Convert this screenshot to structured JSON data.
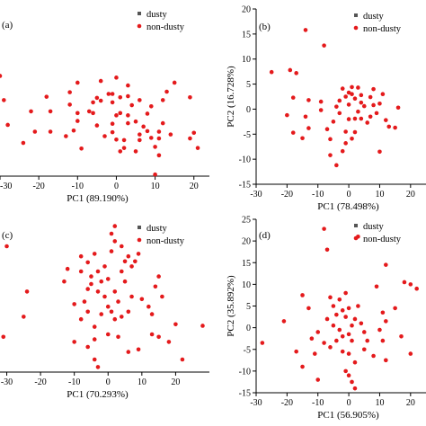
{
  "colors": {
    "nondusty": "#e41a1c",
    "dusty": "#555555"
  },
  "chart_data": [
    {
      "type": "scatter",
      "panel_label": "(a)",
      "xlabel": "PC1 (89.190%)",
      "ylabel": "",
      "xlim": [
        -30,
        24
      ],
      "ylim": [
        -10,
        20
      ],
      "xticks": [
        "-30",
        "-20",
        "-10",
        "0",
        "10",
        "20"
      ],
      "yticks": [],
      "legend": {
        "position": "top-right",
        "entries": [
          "dusty",
          "non-dusty"
        ]
      },
      "series": [
        {
          "name": "dusty",
          "points": []
        },
        {
          "name": "non-dusty",
          "points": [
            [
              -30,
              7.8
            ],
            [
              -28,
              -0.9
            ],
            [
              -29,
              3.5
            ],
            [
              -22,
              1.5
            ],
            [
              -18,
              4.1
            ],
            [
              -17,
              1.5
            ],
            [
              -12,
              2.7
            ],
            [
              -12,
              4.9
            ],
            [
              -10,
              1.2
            ],
            [
              -7,
              1.5
            ],
            [
              -6,
              1.2
            ],
            [
              -13,
              -2.9
            ],
            [
              -17,
              -2.1
            ],
            [
              -21,
              -2.1
            ],
            [
              -24,
              -4.1
            ],
            [
              -10,
              -0.2
            ],
            [
              -9,
              -5.1
            ],
            [
              -5,
              -1.0
            ],
            [
              -11,
              -1.9
            ],
            [
              -10,
              6.6
            ],
            [
              -5,
              3.9
            ],
            [
              -6,
              3.1
            ],
            [
              -4,
              3.4
            ],
            [
              -4,
              6.9
            ],
            [
              0,
              7.5
            ],
            [
              -2,
              4.6
            ],
            [
              1,
              4.0
            ],
            [
              -1,
              3.1
            ],
            [
              -1,
              4.6
            ],
            [
              1,
              1.2
            ],
            [
              0,
              0.8
            ],
            [
              -1,
              -0.7
            ],
            [
              3,
              0.8
            ],
            [
              -1,
              -2.2
            ],
            [
              2,
              -3.6
            ],
            [
              1,
              -5.6
            ],
            [
              3,
              -0.6
            ],
            [
              5,
              -0.3
            ],
            [
              4,
              2.6
            ],
            [
              3,
              6.1
            ],
            [
              3,
              4.2
            ],
            [
              6,
              3.5
            ],
            [
              8,
              1.1
            ],
            [
              9,
              2.4
            ],
            [
              8,
              -2.0
            ],
            [
              6,
              -3.6
            ],
            [
              6,
              -2.6
            ],
            [
              5,
              -5.6
            ],
            [
              7,
              -1.2
            ],
            [
              9,
              -3.2
            ],
            [
              10,
              -4.8
            ],
            [
              11,
              -2.1
            ],
            [
              11,
              -3.3
            ],
            [
              11,
              -6.3
            ],
            [
              12,
              3.5
            ],
            [
              13,
              5.0
            ],
            [
              15,
              6.6
            ],
            [
              14,
              -2.6
            ],
            [
              12,
              -0.6
            ],
            [
              19,
              4.0
            ],
            [
              21,
              -5.0
            ],
            [
              19,
              -3.3
            ],
            [
              20,
              -2.3
            ],
            [
              10,
              -9.7
            ],
            [
              -3,
              -2.9
            ],
            [
              2,
              -5.0
            ],
            [
              0,
              -3.5
            ]
          ]
        }
      ]
    },
    {
      "type": "scatter",
      "panel_label": "(b)",
      "xlabel": "PC1 (78.498%)",
      "ylabel": "PC2 (16.728%)",
      "xlim": [
        -30,
        25
      ],
      "ylim": [
        -15,
        20
      ],
      "xticks": [
        "-30",
        "-20",
        "-10",
        "0",
        "10",
        "20"
      ],
      "yticks": [
        "-15",
        "-10",
        "-5",
        "0",
        "5",
        "10",
        "15",
        "20"
      ],
      "legend": {
        "position": "top-right",
        "entries": [
          "dusty",
          "non-dusty"
        ]
      },
      "series": [
        {
          "name": "dusty",
          "points": []
        },
        {
          "name": "non-dusty",
          "points": [
            [
              -25,
              7.4
            ],
            [
              -19,
              7.8
            ],
            [
              -18,
              2.3
            ],
            [
              -17,
              7.2
            ],
            [
              -14,
              15.8
            ],
            [
              -8,
              12.7
            ],
            [
              -13,
              1.8
            ],
            [
              -9,
              1.5
            ],
            [
              -20,
              -1.2
            ],
            [
              -14,
              -1.5
            ],
            [
              -18,
              -4.7
            ],
            [
              -15,
              -5.8
            ],
            [
              -13,
              -3.8
            ],
            [
              -7,
              -4.0
            ],
            [
              -5,
              -2.5
            ],
            [
              -4,
              0.5
            ],
            [
              -3,
              -0.8
            ],
            [
              -6,
              -6.0
            ],
            [
              -6,
              -9.2
            ],
            [
              -4,
              -11.2
            ],
            [
              -2,
              -8.4
            ],
            [
              -1,
              -6.8
            ],
            [
              -3,
              1.7
            ],
            [
              -1,
              2.5
            ],
            [
              0,
              3.3
            ],
            [
              -2,
              4.1
            ],
            [
              1,
              3.0
            ],
            [
              2,
              2.1
            ],
            [
              1,
              4.4
            ],
            [
              3,
              4.3
            ],
            [
              4,
              2.8
            ],
            [
              4,
              1.3
            ],
            [
              5,
              0.6
            ],
            [
              3,
              -0.5
            ],
            [
              0,
              -2.0
            ],
            [
              -1,
              -4.5
            ],
            [
              1,
              -5.9
            ],
            [
              2,
              -4.6
            ],
            [
              4,
              -1.9
            ],
            [
              6,
              -2.7
            ],
            [
              7,
              -1.5
            ],
            [
              8,
              0.8
            ],
            [
              9,
              -0.8
            ],
            [
              10,
              1.1
            ],
            [
              11,
              3.0
            ],
            [
              7,
              2.4
            ],
            [
              8,
              4.0
            ],
            [
              12,
              -2.2
            ],
            [
              13,
              -3.5
            ],
            [
              15,
              -3.7
            ],
            [
              10,
              -8.5
            ],
            [
              16,
              0.3
            ],
            [
              -9,
              -0.2
            ],
            [
              0,
              0.9
            ],
            [
              2,
              -1.9
            ]
          ]
        }
      ]
    },
    {
      "type": "scatter",
      "panel_label": "(c)",
      "xlabel": "PC1 (70.293%)",
      "ylabel": "",
      "xlim": [
        -32,
        30
      ],
      "ylim": [
        -10,
        20
      ],
      "xticks": [
        "-30",
        "-20",
        "-10",
        "0",
        "10",
        "20"
      ],
      "yticks": [],
      "legend": {
        "position": "top-right",
        "entries": [
          "dusty",
          "non-dusty"
        ]
      },
      "series": [
        {
          "name": "dusty",
          "points": []
        },
        {
          "name": "non-dusty",
          "points": [
            [
              -30,
              15.0
            ],
            [
              -31,
              -3.0
            ],
            [
              -24,
              6.0
            ],
            [
              -25,
              1.0
            ],
            [
              -13,
              8.0
            ],
            [
              -12,
              10.5
            ],
            [
              -8,
              13.0
            ],
            [
              -8,
              10.0
            ],
            [
              -6,
              11.8
            ],
            [
              -5,
              9.0
            ],
            [
              -3,
              10.0
            ],
            [
              -4,
              13.5
            ],
            [
              -6,
              6.5
            ],
            [
              -5,
              7.5
            ],
            [
              -3,
              6.0
            ],
            [
              -1,
              5.0
            ],
            [
              -2,
              8.0
            ],
            [
              -1,
              11.0
            ],
            [
              1,
              14.0
            ],
            [
              2,
              16.0
            ],
            [
              1,
              17.5
            ],
            [
              2,
              19.0
            ],
            [
              4,
              15.0
            ],
            [
              5,
              12.0
            ],
            [
              4,
              10.0
            ],
            [
              5,
              8.0
            ],
            [
              6,
              13.0
            ],
            [
              7,
              11.0
            ],
            [
              8,
              12.0
            ],
            [
              9,
              13.5
            ],
            [
              -10,
              3.5
            ],
            [
              -7,
              4.0
            ],
            [
              -8,
              0.5
            ],
            [
              -6,
              2.0
            ],
            [
              -4,
              -1.0
            ],
            [
              -2,
              1.5
            ],
            [
              0,
              3.0
            ],
            [
              1,
              2.0
            ],
            [
              2,
              0.5
            ],
            [
              3,
              4.0
            ],
            [
              4,
              1.0
            ],
            [
              6,
              2.0
            ],
            [
              7,
              5.0
            ],
            [
              10,
              4.5
            ],
            [
              12,
              3.0
            ],
            [
              13,
              1.5
            ],
            [
              14,
              7.0
            ],
            [
              15,
              9.0
            ],
            [
              16,
              5.0
            ],
            [
              -10,
              -4.0
            ],
            [
              -6,
              -5.0
            ],
            [
              -4,
              -7.5
            ],
            [
              -3,
              -9.0
            ],
            [
              -4,
              -3.5
            ],
            [
              0,
              -2.5
            ],
            [
              3,
              -3.0
            ],
            [
              6,
              -6.0
            ],
            [
              9,
              -5.5
            ],
            [
              13,
              -2.5
            ],
            [
              15,
              -3.0
            ],
            [
              18,
              -4.0
            ],
            [
              20,
              -0.5
            ],
            [
              22,
              -7.5
            ],
            [
              28,
              -0.8
            ],
            [
              0,
              8.5
            ],
            [
              2,
              6.0
            ]
          ]
        }
      ]
    },
    {
      "type": "scatter",
      "panel_label": "(d)",
      "xlabel": "PC1 (56.905%)",
      "ylabel": "PC2 (35.892%)",
      "xlim": [
        -30,
        25
      ],
      "ylim": [
        -15,
        25
      ],
      "xticks": [
        "-30",
        "-20",
        "-10",
        "0",
        "10",
        "20"
      ],
      "yticks": [
        "-15",
        "-10",
        "-5",
        "0",
        "5",
        "10",
        "15",
        "20",
        "25"
      ],
      "legend": {
        "position": "top-right",
        "entries": [
          "dusty",
          "non-dusty"
        ]
      },
      "series": [
        {
          "name": "dusty",
          "points": []
        },
        {
          "name": "non-dusty",
          "points": [
            [
              -28,
              -3.5
            ],
            [
              -21,
              1.5
            ],
            [
              -15,
              7.5
            ],
            [
              -17,
              -5.5
            ],
            [
              -15,
              -9.0
            ],
            [
              -13,
              4.5
            ],
            [
              -10,
              -1.0
            ],
            [
              -12,
              -2.5
            ],
            [
              -11,
              -6.0
            ],
            [
              -8,
              22.8
            ],
            [
              -7,
              18.0
            ],
            [
              -6,
              7.0
            ],
            [
              -5,
              5.0
            ],
            [
              -3,
              6.5
            ],
            [
              -2,
              4.0
            ],
            [
              -4,
              3.0
            ],
            [
              -7,
              2.0
            ],
            [
              -5,
              0.5
            ],
            [
              -3,
              -0.5
            ],
            [
              -2,
              -2.0
            ],
            [
              -4,
              -3.0
            ],
            [
              -6,
              -4.5
            ],
            [
              -2,
              -5.5
            ],
            [
              0,
              -6.0
            ],
            [
              1,
              -3.0
            ],
            [
              0,
              -1.5
            ],
            [
              1,
              0.5
            ],
            [
              2,
              2.0
            ],
            [
              0,
              4.5
            ],
            [
              -1,
              8.0
            ],
            [
              3,
              5.0
            ],
            [
              4,
              1.0
            ],
            [
              5,
              -1.0
            ],
            [
              6,
              -3.0
            ],
            [
              5,
              -5.0
            ],
            [
              2,
              -8.0
            ],
            [
              0,
              -11.0
            ],
            [
              1,
              -12.5
            ],
            [
              2,
              -14.0
            ],
            [
              -1,
              -10.0
            ],
            [
              -8,
              -3.5
            ],
            [
              -10,
              -12.0
            ],
            [
              3,
              21.0
            ],
            [
              9,
              9.5
            ],
            [
              12,
              14.5
            ],
            [
              18,
              10.5
            ],
            [
              20,
              10.0
            ],
            [
              22,
              9.0
            ],
            [
              11,
              3.5
            ],
            [
              15,
              4.5
            ],
            [
              12,
              1.5
            ],
            [
              10,
              -0.5
            ],
            [
              11,
              -3.0
            ],
            [
              12,
              -7.5
            ],
            [
              8,
              -6.5
            ],
            [
              17,
              -2.0
            ],
            [
              20,
              -6.0
            ],
            [
              -1,
              2.5
            ]
          ]
        }
      ]
    }
  ]
}
